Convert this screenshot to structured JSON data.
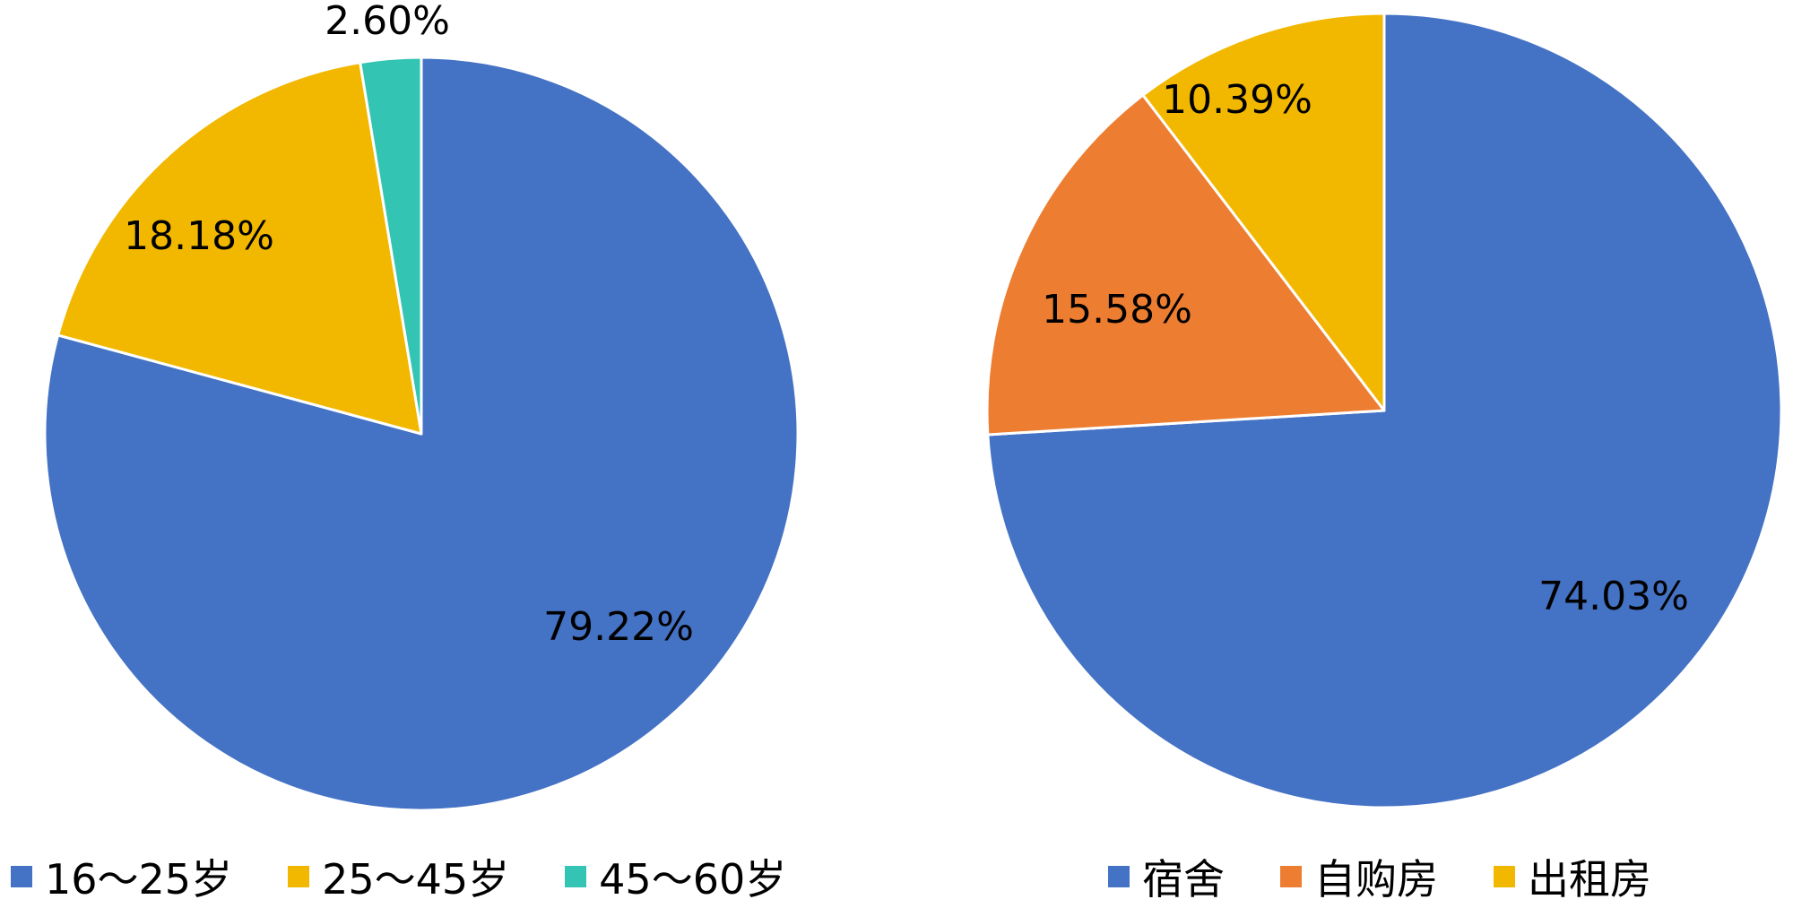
{
  "chart_data": [
    {
      "type": "pie",
      "title": "",
      "slices": [
        {
          "label": "16～25岁",
          "value": 79.22,
          "display": "79.22%",
          "color": "#4472C4"
        },
        {
          "label": "25～45岁",
          "value": 18.18,
          "display": "18.18%",
          "color": "#F2B800"
        },
        {
          "label": "45～60岁",
          "value": 2.6,
          "display": "2.60%",
          "color": "#33C4B3"
        }
      ],
      "legend_position": "bottom"
    },
    {
      "type": "pie",
      "title": "",
      "slices": [
        {
          "label": "宿舍",
          "value": 74.03,
          "display": "74.03%",
          "color": "#4472C4"
        },
        {
          "label": "自购房",
          "value": 15.58,
          "display": "15.58%",
          "color": "#ED7D31"
        },
        {
          "label": "出租房",
          "value": 10.39,
          "display": "10.39%",
          "color": "#F2B800"
        }
      ],
      "legend_position": "bottom"
    }
  ]
}
